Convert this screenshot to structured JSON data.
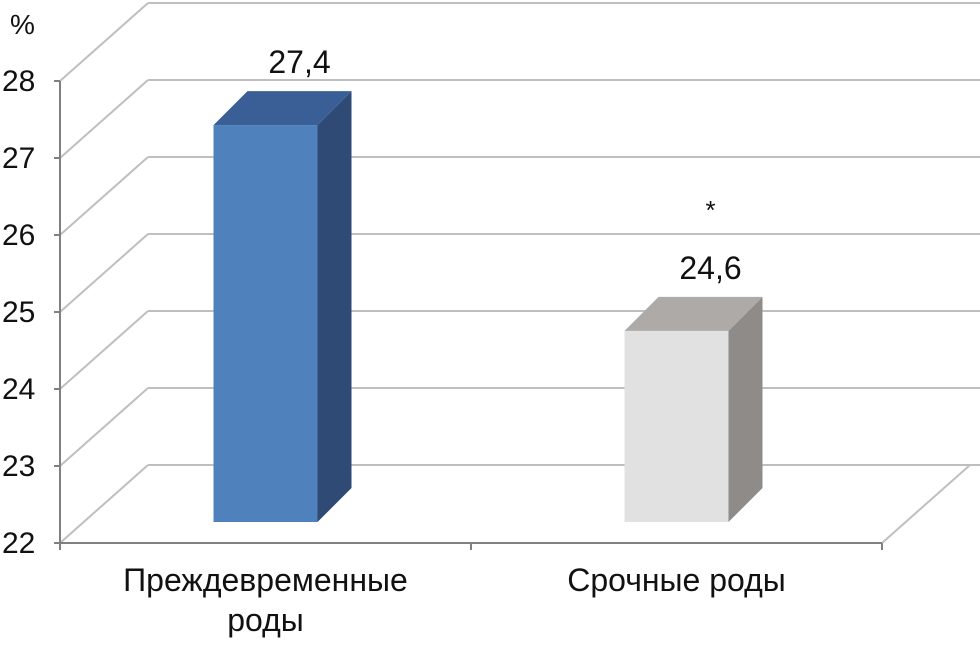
{
  "chart_data": {
    "type": "bar",
    "unit_label": "%",
    "categories": [
      [
        "Преждевременные",
        "роды"
      ],
      [
        "Срочные роды"
      ]
    ],
    "values": [
      27.4,
      24.6
    ],
    "value_labels": [
      "27,4",
      "24,6"
    ],
    "annotations": [
      "",
      "*"
    ],
    "ylim": [
      22,
      28
    ],
    "yticks": [
      "22",
      "23",
      "24",
      "25",
      "26",
      "27",
      "28"
    ],
    "grid": true,
    "three_d": true,
    "colors": {
      "series": [
        {
          "front": "#4F81BD",
          "side": "#2F4A75",
          "top": "#3A5F96"
        },
        {
          "front": "#E2E1E2",
          "side": "#8E8B89",
          "top": "#ADAAA8"
        }
      ],
      "grid": "#BFBFBF",
      "axis": "#808080"
    }
  }
}
